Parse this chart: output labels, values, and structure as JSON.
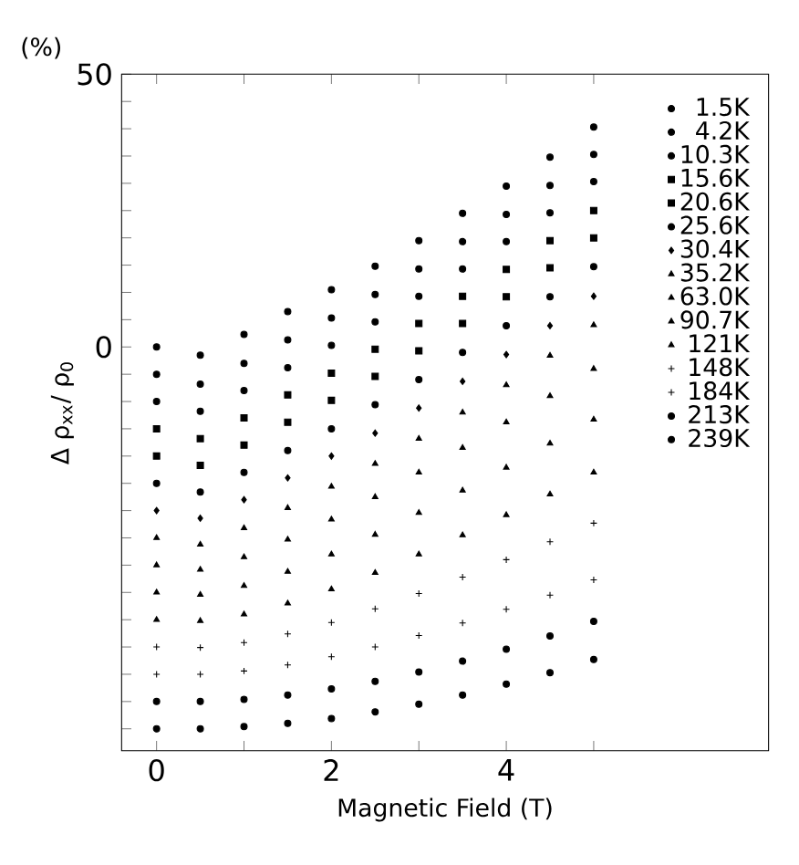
{
  "chart_data": {
    "type": "scatter",
    "xlabel": "Magnetic Field (T)",
    "ylabel": "Δ ρ$_{xx}$/ ρ$_{0}$",
    "annotations": [
      "(%)"
    ],
    "x": [
      0,
      0.5,
      1,
      1.5,
      2,
      2.5,
      3,
      3.5,
      4,
      4.5,
      5
    ],
    "xlim": [
      -0.4,
      7
    ],
    "xticks": [
      0,
      {
        "value": 1,
        "label": null
      },
      2,
      {
        "value": 3,
        "label": null
      },
      4,
      {
        "value": 5,
        "label": null
      }
    ],
    "ylim": [
      -74,
      50
    ],
    "yticks": [
      {
        "value": -70,
        "label": null
      },
      {
        "value": -65,
        "label": null
      },
      {
        "value": -60,
        "label": null
      },
      {
        "value": -55,
        "label": null
      },
      {
        "value": -50,
        "label": null
      },
      {
        "value": -45,
        "label": null
      },
      {
        "value": -40,
        "label": null
      },
      {
        "value": -35,
        "label": null
      },
      {
        "value": -30,
        "label": null
      },
      {
        "value": -25,
        "label": null
      },
      {
        "value": -20,
        "label": null
      },
      {
        "value": -15,
        "label": null
      },
      {
        "value": -10,
        "label": null
      },
      {
        "value": -5,
        "label": null
      },
      0,
      {
        "value": 5,
        "label": null
      },
      {
        "value": 10,
        "label": null
      },
      {
        "value": 15,
        "label": null
      },
      {
        "value": 20,
        "label": null
      },
      {
        "value": 25,
        "label": null
      },
      {
        "value": 30,
        "label": null
      },
      {
        "value": 35,
        "label": null
      },
      {
        "value": 40,
        "label": null
      },
      {
        "value": 45,
        "label": null
      },
      50
    ],
    "grid": false,
    "legend": "right",
    "series": [
      {
        "name": "1.5K",
        "color": "#000000",
        "marker": "circle",
        "values": [
          0,
          -1.5,
          2.3,
          6.5,
          10.5,
          14.8,
          19.5,
          24.5,
          29.5,
          34.8,
          40.3
        ]
      },
      {
        "name": "4.2K",
        "color": "#000000",
        "marker": "circle",
        "values": [
          -5,
          -6.8,
          -3,
          1.3,
          5.3,
          9.6,
          14.3,
          19.3,
          24.3,
          29.6,
          35.3
        ]
      },
      {
        "name": "10.3K",
        "color": "#000000",
        "marker": "circle",
        "values": [
          -10,
          -11.8,
          -8,
          -3.8,
          0.3,
          4.6,
          9.3,
          14.3,
          19.3,
          24.6,
          30.3
        ]
      },
      {
        "name": "15.6K",
        "color": "#000000",
        "marker": "square",
        "values": [
          -15,
          -16.8,
          -13,
          -8.8,
          -4.8,
          -0.4,
          4.3,
          9.3,
          14.2,
          19.5,
          25
        ]
      },
      {
        "name": "20.6K",
        "color": "#000000",
        "marker": "square",
        "values": [
          -20,
          -21.7,
          -18,
          -13.8,
          -9.8,
          -5.4,
          -0.7,
          4.3,
          9.2,
          14.5,
          20
        ]
      },
      {
        "name": "25.6K",
        "color": "#000000",
        "marker": "circle",
        "values": [
          -25,
          -26.6,
          -23,
          -19,
          -15,
          -10.6,
          -6,
          -1,
          3.9,
          9.2,
          14.7
        ]
      },
      {
        "name": "30.4K",
        "color": "#000000",
        "marker": "diamond",
        "values": [
          -30,
          -31.4,
          -28,
          -24,
          -20,
          -15.8,
          -11.2,
          -6.3,
          -1.4,
          3.9,
          9.3
        ]
      },
      {
        "name": "35.2K",
        "color": "#000000",
        "marker": "triangle",
        "values": [
          -35,
          -36.2,
          -33.2,
          -29.5,
          -25.6,
          -21.4,
          -16.8,
          -12,
          -7,
          -1.6,
          4
        ]
      },
      {
        "name": "63.0K",
        "color": "#000000",
        "marker": "triangle",
        "values": [
          -40,
          -40.8,
          -38.5,
          -35.3,
          -31.6,
          -27.5,
          -23,
          -18.5,
          -13.8,
          -9,
          -4
        ]
      },
      {
        "name": "90.7K",
        "color": "#000000",
        "marker": "triangle",
        "values": [
          -45,
          -45.4,
          -43.8,
          -41.2,
          -38,
          -34.4,
          -30.4,
          -26.3,
          -22.1,
          -17.7,
          -13.3
        ]
      },
      {
        "name": "121K",
        "color": "#000000",
        "marker": "triangle",
        "values": [
          -50,
          -50.2,
          -49,
          -47,
          -44.4,
          -41.4,
          -38,
          -34.5,
          -30.8,
          -27,
          -23
        ]
      },
      {
        "name": "148K",
        "color": "#000000",
        "marker": "cross",
        "values": [
          -55,
          -55.1,
          -54.2,
          -52.6,
          -50.5,
          -48,
          -45.2,
          -42.2,
          -39,
          -35.7,
          -32.3
        ]
      },
      {
        "name": "184K",
        "color": "#000000",
        "marker": "cross",
        "values": [
          -60,
          -60,
          -59.4,
          -58.3,
          -56.8,
          -55,
          -52.9,
          -50.6,
          -48.1,
          -45.5,
          -42.7
        ]
      },
      {
        "name": "213K",
        "color": "#000000",
        "marker": "circle",
        "values": [
          -65,
          -65,
          -64.6,
          -63.8,
          -62.7,
          -61.3,
          -59.6,
          -57.6,
          -55.4,
          -53,
          -50.3
        ]
      },
      {
        "name": "239K",
        "color": "#000000",
        "marker": "circle",
        "values": [
          -70,
          -70,
          -69.6,
          -69,
          -68.1,
          -66.9,
          -65.5,
          -63.8,
          -61.8,
          -59.7,
          -57.3
        ]
      }
    ]
  }
}
